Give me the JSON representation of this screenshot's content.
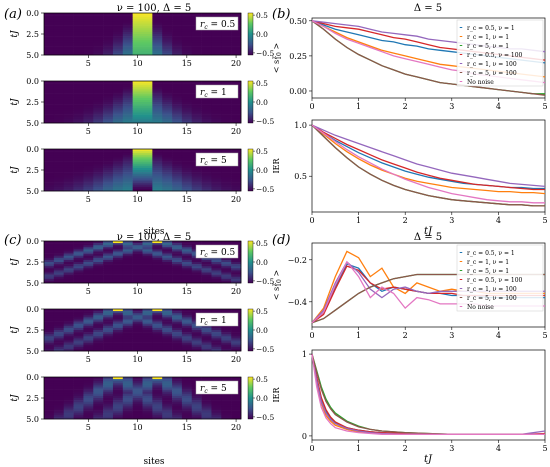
{
  "figure": {
    "panel_labels": {
      "a": "(a)",
      "b": "(b)",
      "c": "(c)",
      "d": "(d)"
    },
    "titles": {
      "a": "ν = 100, Δ = 5",
      "b": "Δ = 5",
      "c": "ν = 100, Δ = 5",
      "d": "Δ = 5"
    },
    "colorbar_ticks": [
      "0.5",
      "0.0",
      "−0.5"
    ],
    "colors": {
      "series": [
        "#1f77b4",
        "#ff7f0e",
        "#2ca02c",
        "#d62728",
        "#9467bd",
        "#8c564b",
        "#e377c2"
      ],
      "heat_low": "#440154",
      "heat_mid": "#21918c",
      "heat_high": "#fde725"
    }
  },
  "chart_data": [
    {
      "id": "a",
      "type": "heatmap",
      "title": "ν = 100, Δ = 5",
      "xlabel": "sites",
      "ylabel": "tJ",
      "xticks": [
        "5",
        "10",
        "15",
        "20"
      ],
      "yticks": [
        "0.0",
        "2.5",
        "5.0"
      ],
      "xlim": [
        0.5,
        20.5
      ],
      "ylim": [
        0,
        5
      ],
      "zlim": [
        -0.5,
        0.5
      ],
      "subplots": [
        {
          "label": "r_c = 0.5",
          "r_c": "0.5",
          "center": 10.5,
          "width": 2,
          "spread": 0.35,
          "decay": 0.12
        },
        {
          "label": "r_c = 1",
          "r_c": "1",
          "center": 10.5,
          "width": 2,
          "spread": 0.6,
          "decay": 0.2
        },
        {
          "label": "r_c = 5",
          "r_c": "5",
          "center": 10.5,
          "width": 2,
          "spread": 0.8,
          "decay": 0.35
        }
      ]
    },
    {
      "id": "b",
      "type": "line",
      "title": "Δ = 5",
      "xlabel": "tJ",
      "xticks": [
        "0",
        "1",
        "2",
        "3",
        "4",
        "5"
      ],
      "xlim": [
        0,
        5
      ],
      "legend_position": "upper-right",
      "legend": [
        "r_c = 0.5, ν = 1",
        "r_c = 1, ν = 1",
        "r_c = 5, ν = 1",
        "r_c = 0.5, ν = 100",
        "r_c = 1, ν = 100",
        "r_c = 5, ν = 100",
        "No noise"
      ],
      "top": {
        "ylabel": "< s^z_{10} >",
        "ylim": [
          -0.05,
          0.52
        ],
        "yticks": [
          "0.50",
          "0.25",
          "0.00"
        ],
        "ytick_values": [
          0.5,
          0.25,
          0.0
        ],
        "x": [
          0,
          0.25,
          0.5,
          0.75,
          1,
          1.25,
          1.5,
          1.75,
          2,
          2.25,
          2.5,
          2.75,
          3,
          3.25,
          3.5,
          3.75,
          4,
          4.25,
          4.5,
          4.75,
          5
        ],
        "series": [
          {
            "values": [
              0.5,
              0.47,
              0.44,
              0.42,
              0.4,
              0.38,
              0.36,
              0.35,
              0.33,
              0.32,
              0.3,
              0.29,
              0.28,
              0.27,
              0.26,
              0.25,
              0.24,
              0.23,
              0.22,
              0.21,
              0.2
            ]
          },
          {
            "values": [
              0.5,
              0.46,
              0.42,
              0.38,
              0.35,
              0.32,
              0.29,
              0.27,
              0.25,
              0.23,
              0.21,
              0.19,
              0.18,
              0.17,
              0.16,
              0.15,
              0.14,
              0.13,
              0.12,
              0.11,
              0.1
            ]
          },
          {
            "values": [
              0.5,
              0.44,
              0.37,
              0.31,
              0.26,
              0.22,
              0.18,
              0.15,
              0.12,
              0.1,
              0.08,
              0.06,
              0.05,
              0.04,
              0.03,
              0.02,
              0.01,
              0.0,
              -0.01,
              -0.02,
              -0.02
            ]
          },
          {
            "values": [
              0.5,
              0.48,
              0.46,
              0.45,
              0.44,
              0.42,
              0.4,
              0.38,
              0.37,
              0.35,
              0.33,
              0.31,
              0.3,
              0.29,
              0.28,
              0.27,
              0.26,
              0.25,
              0.24,
              0.23,
              0.22
            ]
          },
          {
            "values": [
              0.5,
              0.49,
              0.48,
              0.47,
              0.46,
              0.44,
              0.42,
              0.41,
              0.4,
              0.39,
              0.37,
              0.36,
              0.35,
              0.34,
              0.33,
              0.32,
              0.31,
              0.3,
              0.3,
              0.29,
              0.28
            ]
          },
          {
            "values": [
              0.5,
              0.44,
              0.37,
              0.31,
              0.26,
              0.22,
              0.18,
              0.15,
              0.12,
              0.1,
              0.08,
              0.06,
              0.05,
              0.04,
              0.03,
              0.02,
              0.01,
              0.0,
              -0.01,
              -0.02,
              -0.03
            ]
          },
          {
            "values": [
              0.5,
              0.46,
              0.41,
              0.37,
              0.34,
              0.31,
              0.28,
              0.25,
              0.23,
              0.21,
              0.19,
              0.17,
              0.15,
              0.14,
              0.12,
              0.11,
              0.1,
              0.09,
              0.08,
              0.07,
              0.06
            ]
          }
        ]
      },
      "bottom": {
        "ylabel": "IER",
        "ylim": [
          0.15,
          1.05
        ],
        "yticks": [
          "1.0",
          "0.5"
        ],
        "ytick_values": [
          1.0,
          0.5
        ],
        "x": [
          0,
          0.25,
          0.5,
          0.75,
          1,
          1.25,
          1.5,
          1.75,
          2,
          2.25,
          2.5,
          2.75,
          3,
          3.25,
          3.5,
          3.75,
          4,
          4.25,
          4.5,
          4.75,
          5
        ],
        "series": [
          {
            "values": [
              1.0,
              0.92,
              0.85,
              0.79,
              0.73,
              0.68,
              0.63,
              0.59,
              0.55,
              0.52,
              0.49,
              0.47,
              0.45,
              0.43,
              0.42,
              0.41,
              0.4,
              0.39,
              0.39,
              0.38,
              0.38
            ]
          },
          {
            "values": [
              1.0,
              0.91,
              0.82,
              0.74,
              0.67,
              0.61,
              0.56,
              0.52,
              0.48,
              0.45,
              0.43,
              0.41,
              0.39,
              0.38,
              0.37,
              0.36,
              0.35,
              0.35,
              0.34,
              0.34,
              0.33
            ]
          },
          {
            "values": [
              1.0,
              0.89,
              0.78,
              0.68,
              0.59,
              0.52,
              0.46,
              0.41,
              0.37,
              0.34,
              0.31,
              0.29,
              0.27,
              0.26,
              0.25,
              0.24,
              0.23,
              0.22,
              0.22,
              0.21,
              0.21
            ]
          },
          {
            "values": [
              1.0,
              0.93,
              0.87,
              0.81,
              0.76,
              0.71,
              0.66,
              0.62,
              0.58,
              0.54,
              0.51,
              0.48,
              0.46,
              0.44,
              0.42,
              0.41,
              0.4,
              0.39,
              0.38,
              0.37,
              0.37
            ]
          },
          {
            "values": [
              1.0,
              0.95,
              0.9,
              0.86,
              0.82,
              0.78,
              0.74,
              0.7,
              0.66,
              0.62,
              0.59,
              0.56,
              0.53,
              0.51,
              0.49,
              0.47,
              0.45,
              0.43,
              0.42,
              0.41,
              0.4
            ]
          },
          {
            "values": [
              1.0,
              0.89,
              0.78,
              0.68,
              0.59,
              0.52,
              0.46,
              0.41,
              0.37,
              0.34,
              0.31,
              0.29,
              0.27,
              0.26,
              0.25,
              0.24,
              0.23,
              0.22,
              0.22,
              0.21,
              0.21
            ]
          },
          {
            "values": [
              1.0,
              0.92,
              0.84,
              0.76,
              0.69,
              0.63,
              0.57,
              0.52,
              0.47,
              0.43,
              0.39,
              0.36,
              0.33,
              0.31,
              0.29,
              0.27,
              0.26,
              0.25,
              0.25,
              0.24,
              0.24
            ]
          }
        ]
      }
    },
    {
      "id": "c",
      "type": "heatmap",
      "title": "ν = 100, Δ = 5",
      "xlabel": "sites",
      "ylabel": "tJ",
      "xticks": [
        "5",
        "10",
        "15",
        "20"
      ],
      "yticks": [
        "0.0",
        "2.5",
        "5.0"
      ],
      "xlim": [
        0.5,
        20.5
      ],
      "ylim": [
        0,
        5
      ],
      "zlim": [
        -0.5,
        0.5
      ],
      "subplots": [
        {
          "label": "r_c = 0.5",
          "r_c": "0.5",
          "peaks": [
            8,
            12
          ],
          "spread": 2.6
        },
        {
          "label": "r_c = 1",
          "r_c": "1",
          "peaks": [
            8,
            12
          ],
          "spread": 2.0
        },
        {
          "label": "r_c = 5",
          "r_c": "5",
          "peaks": [
            8,
            12
          ],
          "spread": 1.1
        }
      ]
    },
    {
      "id": "d",
      "type": "line",
      "title": "Δ = 5",
      "xlabel": "tJ",
      "xticks": [
        "0",
        "1",
        "2",
        "3",
        "4",
        "5"
      ],
      "xlim": [
        0,
        5
      ],
      "legend_position": "upper-right",
      "legend": [
        "r_c = 0.5, ν = 1",
        "r_c = 1, ν = 1",
        "r_c = 5, ν = 1",
        "r_c = 0.5, ν = 100",
        "r_c = 1, ν = 100",
        "r_c = 5, ν = 100",
        "No noise"
      ],
      "top": {
        "ylabel": "< s^z_{10} >",
        "ylim": [
          -0.52,
          -0.12
        ],
        "yticks": [
          "−0.2",
          "−0.4"
        ],
        "ytick_values": [
          -0.2,
          -0.4
        ],
        "x": [
          0,
          0.25,
          0.5,
          0.75,
          1,
          1.25,
          1.5,
          1.75,
          2,
          2.25,
          2.5,
          2.75,
          3,
          3.25,
          3.5,
          3.75,
          4,
          4.25,
          4.5,
          4.75,
          5
        ],
        "series": [
          {
            "values": [
              -0.5,
              -0.45,
              -0.33,
              -0.22,
              -0.24,
              -0.31,
              -0.35,
              -0.33,
              -0.34,
              -0.35,
              -0.36,
              -0.36,
              -0.37,
              -0.37,
              -0.37,
              -0.38,
              -0.38,
              -0.38,
              -0.38,
              -0.38,
              -0.38
            ]
          },
          {
            "values": [
              -0.5,
              -0.43,
              -0.28,
              -0.16,
              -0.19,
              -0.28,
              -0.24,
              -0.33,
              -0.36,
              -0.31,
              -0.33,
              -0.35,
              -0.34,
              -0.35,
              -0.35,
              -0.36,
              -0.36,
              -0.36,
              -0.36,
              -0.36,
              -0.36
            ]
          },
          {
            "values": [
              -0.5,
              -0.48,
              -0.44,
              -0.4,
              -0.36,
              -0.33,
              -0.31,
              -0.29,
              -0.28,
              -0.27,
              -0.27,
              -0.27,
              -0.27,
              -0.27,
              -0.27,
              -0.27,
              -0.27,
              -0.27,
              -0.27,
              -0.27,
              -0.27
            ]
          },
          {
            "values": [
              -0.5,
              -0.46,
              -0.34,
              -0.23,
              -0.25,
              -0.31,
              -0.34,
              -0.33,
              -0.34,
              -0.35,
              -0.36,
              -0.36,
              -0.36,
              -0.37,
              -0.37,
              -0.37,
              -0.37,
              -0.37,
              -0.37,
              -0.37,
              -0.37
            ]
          },
          {
            "values": [
              -0.5,
              -0.44,
              -0.31,
              -0.21,
              -0.26,
              -0.34,
              -0.38,
              -0.34,
              -0.33,
              -0.35,
              -0.36,
              -0.35,
              -0.35,
              -0.35,
              -0.35,
              -0.35,
              -0.35,
              -0.35,
              -0.35,
              -0.35,
              -0.35
            ]
          },
          {
            "values": [
              -0.5,
              -0.48,
              -0.44,
              -0.4,
              -0.36,
              -0.33,
              -0.31,
              -0.29,
              -0.28,
              -0.27,
              -0.27,
              -0.27,
              -0.27,
              -0.27,
              -0.27,
              -0.27,
              -0.27,
              -0.27,
              -0.27,
              -0.27,
              -0.27
            ]
          },
          {
            "values": [
              -0.5,
              -0.45,
              -0.32,
              -0.21,
              -0.28,
              -0.38,
              -0.33,
              -0.36,
              -0.43,
              -0.38,
              -0.39,
              -0.41,
              -0.41,
              -0.41,
              -0.41,
              -0.42,
              -0.42,
              -0.42,
              -0.42,
              -0.42,
              -0.42
            ]
          }
        ]
      },
      "bottom": {
        "ylabel": "IER",
        "ylim": [
          -0.05,
          1.05
        ],
        "yticks": [
          "1",
          "0"
        ],
        "ytick_values": [
          1,
          0
        ],
        "x": [
          0,
          0.1,
          0.2,
          0.3,
          0.4,
          0.5,
          0.75,
          1,
          1.25,
          1.5,
          2,
          2.5,
          3,
          3.5,
          4,
          4.5,
          5
        ],
        "series": [
          {
            "values": [
              1.0,
              0.7,
              0.45,
              0.3,
              0.22,
              0.16,
              0.1,
              0.07,
              0.05,
              0.04,
              0.03,
              0.02,
              0.02,
              0.02,
              0.02,
              0.02,
              0.02
            ]
          },
          {
            "values": [
              1.0,
              0.65,
              0.4,
              0.25,
              0.18,
              0.13,
              0.08,
              0.05,
              0.04,
              0.03,
              0.02,
              0.02,
              0.02,
              0.02,
              0.02,
              0.02,
              0.02
            ]
          },
          {
            "values": [
              1.0,
              0.8,
              0.6,
              0.45,
              0.35,
              0.28,
              0.18,
              0.12,
              0.08,
              0.06,
              0.04,
              0.03,
              0.02,
              0.02,
              0.02,
              0.02,
              0.02
            ]
          },
          {
            "values": [
              1.0,
              0.72,
              0.47,
              0.32,
              0.23,
              0.17,
              0.1,
              0.07,
              0.05,
              0.04,
              0.03,
              0.02,
              0.02,
              0.02,
              0.02,
              0.02,
              0.03
            ]
          },
          {
            "values": [
              1.0,
              0.68,
              0.42,
              0.28,
              0.2,
              0.15,
              0.09,
              0.06,
              0.04,
              0.03,
              0.02,
              0.02,
              0.02,
              0.02,
              0.02,
              0.02,
              0.06
            ]
          },
          {
            "values": [
              1.0,
              0.78,
              0.57,
              0.42,
              0.33,
              0.26,
              0.17,
              0.11,
              0.08,
              0.06,
              0.04,
              0.03,
              0.02,
              0.02,
              0.02,
              0.02,
              0.02
            ]
          },
          {
            "values": [
              1.0,
              0.6,
              0.35,
              0.22,
              0.15,
              0.1,
              0.06,
              0.04,
              0.03,
              0.02,
              0.02,
              0.02,
              0.02,
              0.02,
              0.02,
              0.02,
              0.02
            ]
          }
        ]
      }
    }
  ]
}
